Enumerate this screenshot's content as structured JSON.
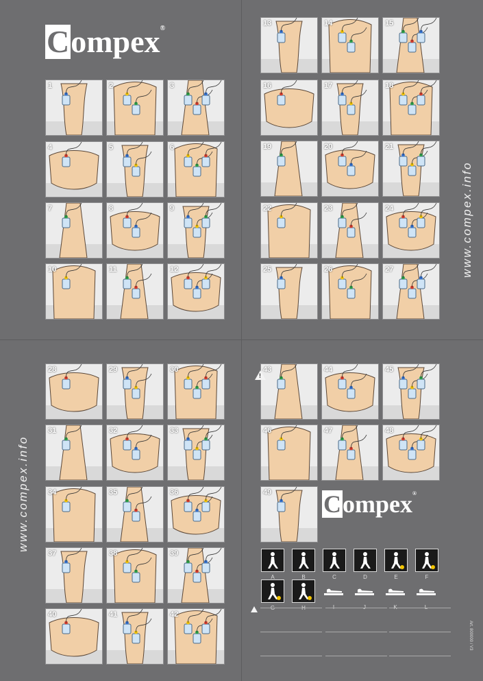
{
  "brand": {
    "logo_letter": "C",
    "logo_rest": "ompex",
    "registered": "®"
  },
  "website": "www.compex.info",
  "tiles": [
    "1",
    "2",
    "3",
    "4",
    "5",
    "6",
    "7",
    "8",
    "9",
    "10",
    "11",
    "12",
    "13",
    "14",
    "15",
    "16",
    "17",
    "18",
    "19",
    "20",
    "21",
    "22",
    "23",
    "24",
    "25",
    "26",
    "27",
    "28",
    "29",
    "30",
    "31",
    "32",
    "33",
    "34",
    "35",
    "36",
    "37",
    "38",
    "39",
    "40",
    "41",
    "42",
    "43",
    "44",
    "45",
    "46",
    "47",
    "48",
    "49"
  ],
  "positions": [
    "A",
    "B",
    "C",
    "D",
    "E",
    "F",
    "G",
    "H",
    "I",
    "J",
    "K",
    "L"
  ],
  "warning_symbol": "!",
  "article": "Art. 800000 / V3",
  "colors": {
    "electrode_blue": "#2f6fd0",
    "electrode_yellow": "#f2c400",
    "electrode_green": "#2aa24a",
    "electrode_red": "#d63a2b",
    "pad": "#cfe4f6"
  }
}
